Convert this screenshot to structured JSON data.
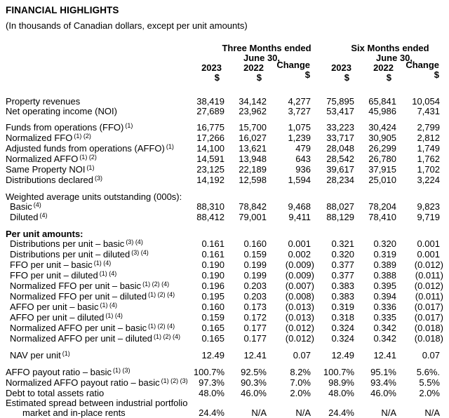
{
  "title": "FINANCIAL HIGHLIGHTS",
  "subtitle": "(In thousands of Canadian dollars, except per unit amounts)",
  "table": {
    "header": {
      "group_three_months": "Three Months ended",
      "group_six_months": "Six Months ended",
      "date_line_three_months": "June 30,",
      "date_line_six_months": "June 30,",
      "col_years": [
        "2023",
        "2022",
        "Change",
        "2023",
        "2022",
        "Change"
      ],
      "currency_symbol": "$"
    },
    "columns": [
      "three-months-2023",
      "three-months-2022",
      "three-months-change",
      "six-months-2023",
      "six-months-2022",
      "six-months-change"
    ],
    "rows": [
      {
        "label": "Property revenues",
        "sup": "",
        "indent": 0,
        "bold": false,
        "values": [
          "38,419",
          "34,142",
          "4,277",
          "75,895",
          "65,841",
          "10,054"
        ]
      },
      {
        "label": "Net operating income (NOI)",
        "sup": "",
        "indent": 0,
        "bold": false,
        "values": [
          "27,689",
          "23,962",
          "3,727",
          "53,417",
          "45,986",
          "7,431"
        ]
      },
      {
        "type": "spacer"
      },
      {
        "label": "Funds from operations (FFO)",
        "sup": "(1)",
        "indent": 0,
        "bold": false,
        "values": [
          "16,775",
          "15,700",
          "1,075",
          "33,223",
          "30,424",
          "2,799"
        ]
      },
      {
        "label": "Normalized FFO",
        "sup": "(1) (2)",
        "indent": 0,
        "bold": false,
        "values": [
          "17,266",
          "16,027",
          "1,239",
          "33,717",
          "30,905",
          "2,812"
        ]
      },
      {
        "label": "Adjusted funds from operations (AFFO)",
        "sup": "(1)",
        "indent": 0,
        "bold": false,
        "values": [
          "14,100",
          "13,621",
          "479",
          "28,048",
          "26,299",
          "1,749"
        ]
      },
      {
        "label": "Normalized AFFO",
        "sup": "(1) (2)",
        "indent": 0,
        "bold": false,
        "values": [
          "14,591",
          "13,948",
          "643",
          "28,542",
          "26,780",
          "1,762"
        ]
      },
      {
        "label": "Same Property NOI",
        "sup": "(1)",
        "indent": 0,
        "bold": false,
        "values": [
          "23,125",
          "22,189",
          "936",
          "39,617",
          "37,915",
          "1,702"
        ]
      },
      {
        "label": "Distributions declared",
        "sup": "(3)",
        "indent": 0,
        "bold": false,
        "values": [
          "14,192",
          "12,598",
          "1,594",
          "28,234",
          "25,010",
          "3,224"
        ]
      },
      {
        "type": "spacer"
      },
      {
        "label": "Weighted average units outstanding (000s):",
        "sup": "",
        "indent": 0,
        "bold": false,
        "values": []
      },
      {
        "label": "Basic",
        "sup": "(4)",
        "indent": 1,
        "bold": false,
        "values": [
          "88,310",
          "78,842",
          "9,468",
          "88,027",
          "78,204",
          "9,823"
        ]
      },
      {
        "label": "Diluted",
        "sup": "(4)",
        "indent": 1,
        "bold": false,
        "values": [
          "88,412",
          "79,001",
          "9,411",
          "88,129",
          "78,410",
          "9,719"
        ]
      },
      {
        "type": "spacer"
      },
      {
        "label": "Per unit amounts:",
        "sup": "",
        "indent": 0,
        "bold": true,
        "values": []
      },
      {
        "label": "Distributions per unit – basic",
        "sup": "(3) (4)",
        "indent": 1,
        "bold": false,
        "values": [
          "0.161",
          "0.160",
          "0.001",
          "0.321",
          "0.320",
          "0.001"
        ]
      },
      {
        "label": "Distributions per unit – diluted",
        "sup": "(3) (4)",
        "indent": 1,
        "bold": false,
        "values": [
          "0.161",
          "0.159",
          "0.002",
          "0.320",
          "0.319",
          "0.001"
        ]
      },
      {
        "label": "FFO per unit – basic",
        "sup": "(1) (4)",
        "indent": 1,
        "bold": false,
        "values": [
          "0.190",
          "0.199",
          "(0.009)",
          "0.377",
          "0.389",
          "(0.012)"
        ]
      },
      {
        "label": "FFO per unit – diluted",
        "sup": "(1) (4)",
        "indent": 1,
        "bold": false,
        "values": [
          "0.190",
          "0.199",
          "(0.009)",
          "0.377",
          "0.388",
          "(0.011)"
        ]
      },
      {
        "label": "Normalized FFO per unit – basic",
        "sup": "(1) (2) (4)",
        "indent": 1,
        "bold": false,
        "values": [
          "0.196",
          "0.203",
          "(0.007)",
          "0.383",
          "0.395",
          "(0.012)"
        ]
      },
      {
        "label": "Normalized FFO per unit – diluted",
        "sup": "(1) (2) (4)",
        "indent": 1,
        "bold": false,
        "values": [
          "0.195",
          "0.203",
          "(0.008)",
          "0.383",
          "0.394",
          "(0.011)"
        ]
      },
      {
        "label": "AFFO per unit – basic",
        "sup": "(1) (4)",
        "indent": 1,
        "bold": false,
        "values": [
          "0.160",
          "0.173",
          "(0.013)",
          "0.319",
          "0.336",
          "(0.017)"
        ]
      },
      {
        "label": "AFFO per unit – diluted",
        "sup": "(1) (4)",
        "indent": 1,
        "bold": false,
        "values": [
          "0.159",
          "0.172",
          "(0.013)",
          "0.318",
          "0.335",
          "(0.017)"
        ]
      },
      {
        "label": "Normalized AFFO per unit – basic",
        "sup": "(1) (2) (4)",
        "indent": 1,
        "bold": false,
        "values": [
          "0.165",
          "0.177",
          "(0.012)",
          "0.324",
          "0.342",
          "(0.018)"
        ]
      },
      {
        "label": "Normalized AFFO per unit – diluted",
        "sup": "(1) (2) (4)",
        "indent": 1,
        "bold": false,
        "values": [
          "0.165",
          "0.177",
          "(0.012)",
          "0.324",
          "0.342",
          "(0.018)"
        ]
      },
      {
        "type": "spacer"
      },
      {
        "label": "NAV per unit",
        "sup": "(1)",
        "indent": 1,
        "bold": false,
        "values": [
          "12.49",
          "12.41",
          "0.07",
          "12.49",
          "12.41",
          "0.07"
        ]
      },
      {
        "type": "spacer"
      },
      {
        "label": "AFFO payout ratio – basic",
        "sup": "(1) (3)",
        "indent": 0,
        "bold": false,
        "values": [
          "100.7%",
          "92.5%",
          "8.2%",
          "100.7%",
          "95.1%",
          "5.6%."
        ]
      },
      {
        "label": "Normalized AFFO payout ratio – basic",
        "sup": "(1) (2) (3)",
        "indent": 0,
        "bold": false,
        "values": [
          "97.3%",
          "90.3%",
          "7.0%",
          "98.9%",
          "93.4%",
          "5.5%"
        ]
      },
      {
        "label": "Debt to total assets ratio",
        "sup": "",
        "indent": 0,
        "bold": false,
        "values": [
          "48.0%",
          "46.0%",
          "2.0%",
          "48.0%",
          "46.0%",
          "2.0%"
        ]
      },
      {
        "label": "Estimated spread between industrial portfolio",
        "label2": "market and in-place rents",
        "sup": "",
        "indent": 0,
        "bold": false,
        "values": [
          "24.4%",
          "N/A",
          "N/A",
          "24.4%",
          "N/A",
          "N/A"
        ]
      }
    ]
  }
}
